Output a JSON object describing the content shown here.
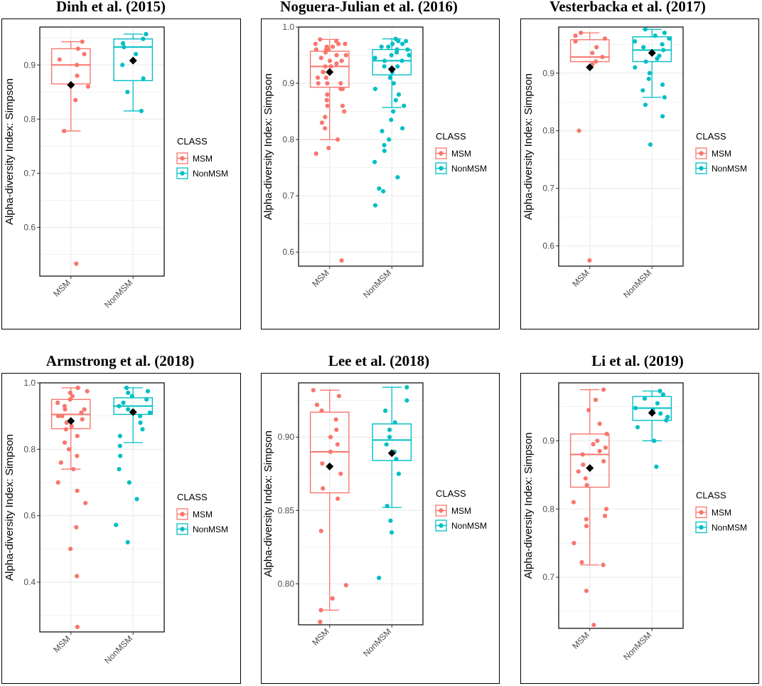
{
  "colors": {
    "MSM": "#F8766D",
    "NonMSM": "#00BFC4",
    "mean": "#000000",
    "grid": "#ebebeb"
  },
  "chart_data": [
    {
      "type": "boxplot",
      "title": "Dinh et al. (2015)",
      "ylabel": "Alpha-diversity Index: Simpson",
      "categories": [
        "MSM",
        "NonMSM"
      ],
      "legend_title": "CLASS",
      "legend_entries": [
        "MSM",
        "NonMSM"
      ],
      "ylim": [
        0.51,
        0.97
      ],
      "yticks": [
        0.6,
        0.7,
        0.8,
        0.9
      ],
      "ytick_labels": [
        "0.6",
        "0.7",
        "0.8",
        "0.9"
      ],
      "boxes": [
        {
          "name": "MSM",
          "whisker_low": 0.778,
          "q1": 0.865,
          "median": 0.9,
          "q3": 0.93,
          "whisker_high": 0.943,
          "mean": 0.863,
          "points": [
            0.533,
            0.778,
            0.835,
            0.86,
            0.88,
            0.9,
            0.91,
            0.92,
            0.93,
            0.943
          ]
        },
        {
          "name": "NonMSM",
          "whisker_low": 0.815,
          "q1": 0.871,
          "median": 0.933,
          "q3": 0.948,
          "whisker_high": 0.957,
          "mean": 0.908,
          "points": [
            0.815,
            0.85,
            0.875,
            0.9,
            0.92,
            0.933,
            0.94,
            0.948,
            0.957
          ]
        }
      ]
    },
    {
      "type": "boxplot",
      "title": "Noguera-Julian et al. (2016)",
      "ylabel": "Alpha-diversity Index: Simpson",
      "categories": [
        "MSM",
        "NonMSM"
      ],
      "legend_title": "CLASS",
      "legend_entries": [
        "MSM",
        "NonMSM"
      ],
      "ylim": [
        0.575,
        1.0
      ],
      "yticks": [
        0.6,
        0.7,
        0.8,
        0.9,
        1.0
      ],
      "ytick_labels": [
        "0.6",
        "0.7",
        "0.8",
        "0.9",
        "1.0"
      ],
      "boxes": [
        {
          "name": "MSM",
          "whisker_low": 0.8,
          "q1": 0.893,
          "median": 0.93,
          "q3": 0.957,
          "whisker_high": 0.978,
          "mean": 0.92,
          "points": [
            0.585,
            0.775,
            0.785,
            0.8,
            0.82,
            0.83,
            0.84,
            0.85,
            0.86,
            0.87,
            0.88,
            0.89,
            0.9,
            0.91,
            0.92,
            0.93,
            0.94,
            0.95,
            0.96,
            0.97,
            0.978,
            0.86,
            0.89,
            0.9,
            0.92,
            0.93,
            0.94,
            0.95,
            0.96,
            0.965,
            0.97,
            0.975,
            0.91,
            0.935,
            0.945,
            0.955,
            0.96,
            0.965,
            0.97,
            0.9
          ]
        },
        {
          "name": "NonMSM",
          "whisker_low": 0.857,
          "q1": 0.915,
          "median": 0.94,
          "q3": 0.96,
          "whisker_high": 0.979,
          "mean": 0.925,
          "points": [
            0.683,
            0.708,
            0.713,
            0.733,
            0.76,
            0.78,
            0.79,
            0.8,
            0.815,
            0.82,
            0.835,
            0.85,
            0.86,
            0.87,
            0.88,
            0.89,
            0.9,
            0.91,
            0.92,
            0.93,
            0.94,
            0.95,
            0.96,
            0.965,
            0.97,
            0.975,
            0.979,
            0.945,
            0.955,
            0.96,
            0.965,
            0.97,
            0.975,
            0.93,
            0.94,
            0.95
          ]
        }
      ]
    },
    {
      "type": "boxplot",
      "title": "Vesterbacka et al. (2017)",
      "ylabel": "Alpha-diversity Index: Simpson",
      "categories": [
        "MSM",
        "NonMSM"
      ],
      "legend_title": "CLASS",
      "legend_entries": [
        "MSM",
        "NonMSM"
      ],
      "ylim": [
        0.565,
        0.98
      ],
      "yticks": [
        0.6,
        0.7,
        0.8,
        0.9
      ],
      "ytick_labels": [
        "0.6",
        "0.7",
        "0.8",
        "0.9"
      ],
      "boxes": [
        {
          "name": "MSM",
          "whisker_low": 0.92,
          "q1": 0.92,
          "median": 0.928,
          "q3": 0.958,
          "whisker_high": 0.97,
          "mean": 0.91,
          "points": [
            0.575,
            0.8,
            0.915,
            0.92,
            0.928,
            0.935,
            0.945,
            0.955,
            0.96,
            0.965,
            0.97
          ]
        },
        {
          "name": "NonMSM",
          "whisker_low": 0.858,
          "q1": 0.92,
          "median": 0.94,
          "q3": 0.963,
          "whisker_high": 0.976,
          "mean": 0.935,
          "points": [
            0.776,
            0.825,
            0.845,
            0.858,
            0.87,
            0.88,
            0.89,
            0.9,
            0.91,
            0.92,
            0.93,
            0.94,
            0.95,
            0.96,
            0.965,
            0.97,
            0.976,
            0.955,
            0.945,
            0.935,
            0.925
          ]
        }
      ]
    },
    {
      "type": "boxplot",
      "title": "Armstrong et al. (2018)",
      "ylabel": "Alpha-diversity Index: Simpson",
      "categories": [
        "MSM",
        "NonMSM"
      ],
      "legend_title": "CLASS",
      "legend_entries": [
        "MSM",
        "NonMSM"
      ],
      "ylim": [
        0.25,
        1.0
      ],
      "yticks": [
        0.4,
        0.6,
        0.8,
        1.0
      ],
      "ytick_labels": [
        "0.4",
        "0.6",
        "0.8",
        "1.0"
      ],
      "boxes": [
        {
          "name": "MSM",
          "whisker_low": 0.74,
          "q1": 0.862,
          "median": 0.905,
          "q3": 0.95,
          "whisker_high": 0.985,
          "mean": 0.885,
          "points": [
            0.265,
            0.418,
            0.5,
            0.565,
            0.638,
            0.675,
            0.7,
            0.74,
            0.76,
            0.78,
            0.8,
            0.82,
            0.84,
            0.86,
            0.88,
            0.9,
            0.92,
            0.94,
            0.96,
            0.975,
            0.985,
            0.87,
            0.89,
            0.91,
            0.93,
            0.95,
            0.97,
            0.9,
            0.92
          ]
        },
        {
          "name": "NonMSM",
          "whisker_low": 0.82,
          "q1": 0.905,
          "median": 0.93,
          "q3": 0.955,
          "whisker_high": 0.985,
          "mean": 0.912,
          "points": [
            0.52,
            0.572,
            0.65,
            0.7,
            0.74,
            0.78,
            0.81,
            0.84,
            0.86,
            0.88,
            0.9,
            0.92,
            0.94,
            0.96,
            0.975,
            0.985,
            0.93,
            0.95,
            0.97,
            0.91
          ]
        }
      ]
    },
    {
      "type": "boxplot",
      "title": "Lee et al. (2018)",
      "ylabel": "Alpha-diversity Index: Simpson",
      "categories": [
        "MSM",
        "NonMSM"
      ],
      "legend_title": "CLASS",
      "legend_entries": [
        "MSM",
        "NonMSM"
      ],
      "ylim": [
        0.772,
        0.937
      ],
      "yticks": [
        0.8,
        0.85,
        0.9
      ],
      "ytick_labels": [
        "0.80",
        "0.85",
        "0.90"
      ],
      "boxes": [
        {
          "name": "MSM",
          "whisker_low": 0.782,
          "q1": 0.862,
          "median": 0.89,
          "q3": 0.917,
          "whisker_high": 0.932,
          "mean": 0.88,
          "points": [
            0.774,
            0.782,
            0.79,
            0.799,
            0.836,
            0.858,
            0.865,
            0.875,
            0.882,
            0.89,
            0.895,
            0.9,
            0.905,
            0.912,
            0.918,
            0.922,
            0.928,
            0.932
          ]
        },
        {
          "name": "NonMSM",
          "whisker_low": 0.852,
          "q1": 0.884,
          "median": 0.898,
          "q3": 0.909,
          "whisker_high": 0.934,
          "mean": 0.889,
          "points": [
            0.804,
            0.835,
            0.843,
            0.853,
            0.875,
            0.885,
            0.89,
            0.895,
            0.9,
            0.905,
            0.91,
            0.918,
            0.925,
            0.934
          ]
        }
      ]
    },
    {
      "type": "boxplot",
      "title": "Li et al. (2019)",
      "ylabel": "Alpha-diversity Index: Simpson",
      "categories": [
        "MSM",
        "NonMSM"
      ],
      "legend_title": "CLASS",
      "legend_entries": [
        "MSM",
        "NonMSM"
      ],
      "ylim": [
        0.625,
        0.985
      ],
      "yticks": [
        0.7,
        0.8,
        0.9
      ],
      "ytick_labels": [
        "0.7",
        "0.8",
        "0.9"
      ],
      "boxes": [
        {
          "name": "MSM",
          "whisker_low": 0.718,
          "q1": 0.832,
          "median": 0.88,
          "q3": 0.91,
          "whisker_high": 0.975,
          "mean": 0.86,
          "points": [
            0.63,
            0.68,
            0.718,
            0.722,
            0.75,
            0.775,
            0.785,
            0.79,
            0.8,
            0.81,
            0.835,
            0.845,
            0.855,
            0.87,
            0.88,
            0.89,
            0.9,
            0.91,
            0.925,
            0.945,
            0.96,
            0.975,
            0.865,
            0.885,
            0.895
          ]
        },
        {
          "name": "NonMSM",
          "whisker_low": 0.9,
          "q1": 0.93,
          "median": 0.948,
          "q3": 0.965,
          "whisker_high": 0.973,
          "mean": 0.941,
          "points": [
            0.862,
            0.9,
            0.92,
            0.93,
            0.94,
            0.948,
            0.955,
            0.962,
            0.968,
            0.973,
            0.935,
            0.945
          ]
        }
      ]
    }
  ]
}
